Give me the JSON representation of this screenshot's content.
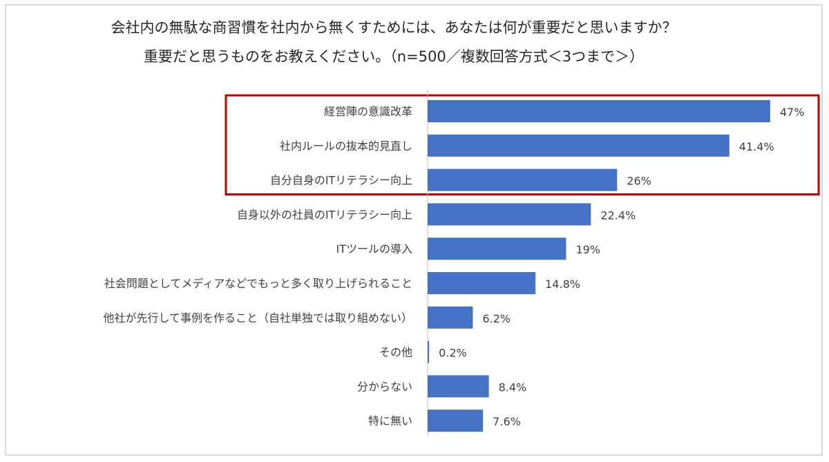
{
  "title_line1": "会社内の無駄な商習慣を社内から無くすためには、あなたは何が重要だと思いますか？",
  "title_line2": "重要だと思うものをお教えください。（n=500／複数回答方式＜3つまで＞）",
  "colors": {
    "bar": "#4472c4",
    "highlight_box": "#c00000",
    "axis": "#bfbfbf"
  },
  "chart_data": {
    "type": "bar",
    "orientation": "horizontal",
    "title": "会社内の無駄な商習慣を社内から無くすためには、あなたは何が重要だと思いますか？ 重要だと思うものをお教えください。（n=500／複数回答方式＜3つまで＞）",
    "categories": [
      "経営陣の意識改革",
      "社内ルールの抜本的見直し",
      "自分自身のITリテラシー向上",
      "自身以外の社員のITリテラシー向上",
      "ITツールの導入",
      "社会問題としてメディアなどでもっと多く取り上げられること",
      "他社が先行して事例を作ること（自社単独では取り組めない）",
      "その他",
      "分からない",
      "特に無い"
    ],
    "values": [
      47,
      41.4,
      26,
      22.4,
      19,
      14.8,
      6.2,
      0.2,
      8.4,
      7.6
    ],
    "value_labels": [
      "47%",
      "41.4%",
      "26%",
      "22.4%",
      "19%",
      "14.8%",
      "6.2%",
      "0.2%",
      "8.4%",
      "7.6%"
    ],
    "highlighted_categories": [
      0,
      1,
      2
    ],
    "xlim": [
      0,
      50
    ],
    "grid": false,
    "legend": "none"
  }
}
